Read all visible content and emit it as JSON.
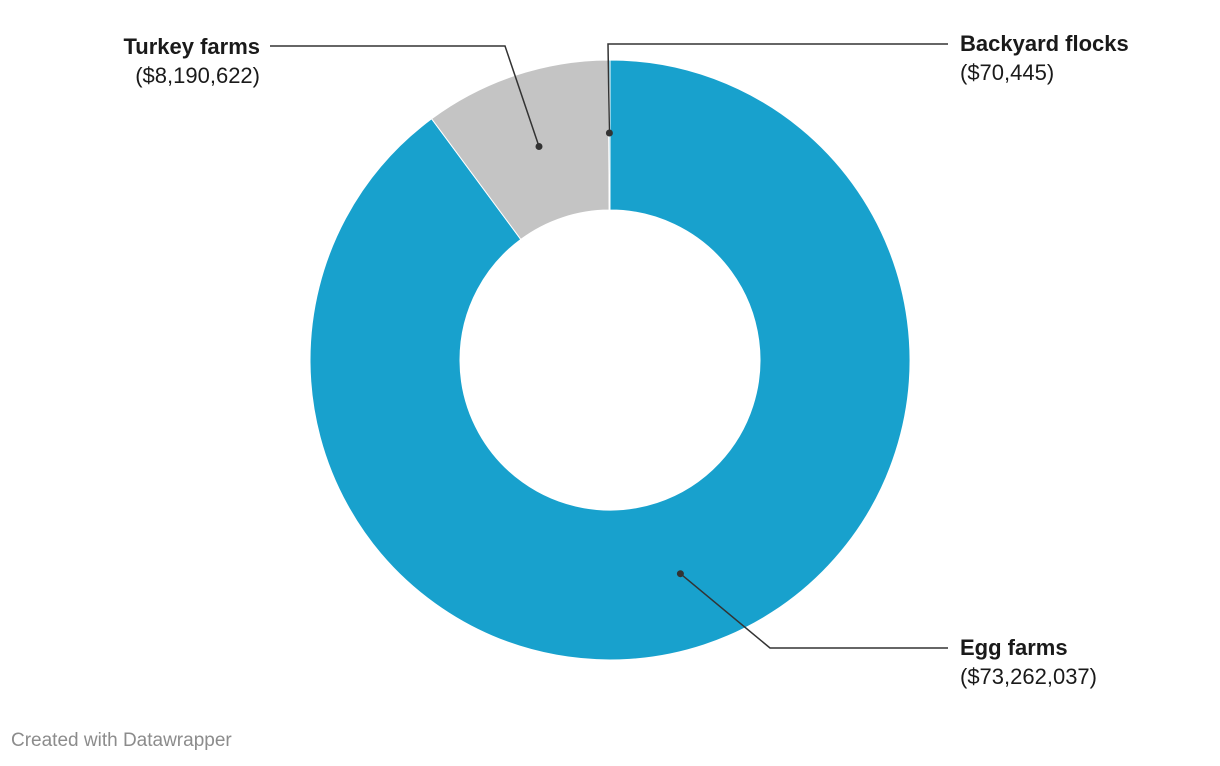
{
  "chart_data": {
    "type": "pie",
    "donut": true,
    "title": "",
    "categories": [
      "Egg farms",
      "Turkey farms",
      "Backyard flocks"
    ],
    "values": [
      73262037,
      8190622,
      70445
    ],
    "value_labels": [
      "($73,262,037)",
      "($8,190,622)",
      "($70,445)"
    ],
    "colors": [
      "#18a1cd",
      "#c4c4c4",
      "#18a1cd"
    ],
    "legend": "none"
  },
  "footer": {
    "credit": "Created with Datawrapper"
  }
}
